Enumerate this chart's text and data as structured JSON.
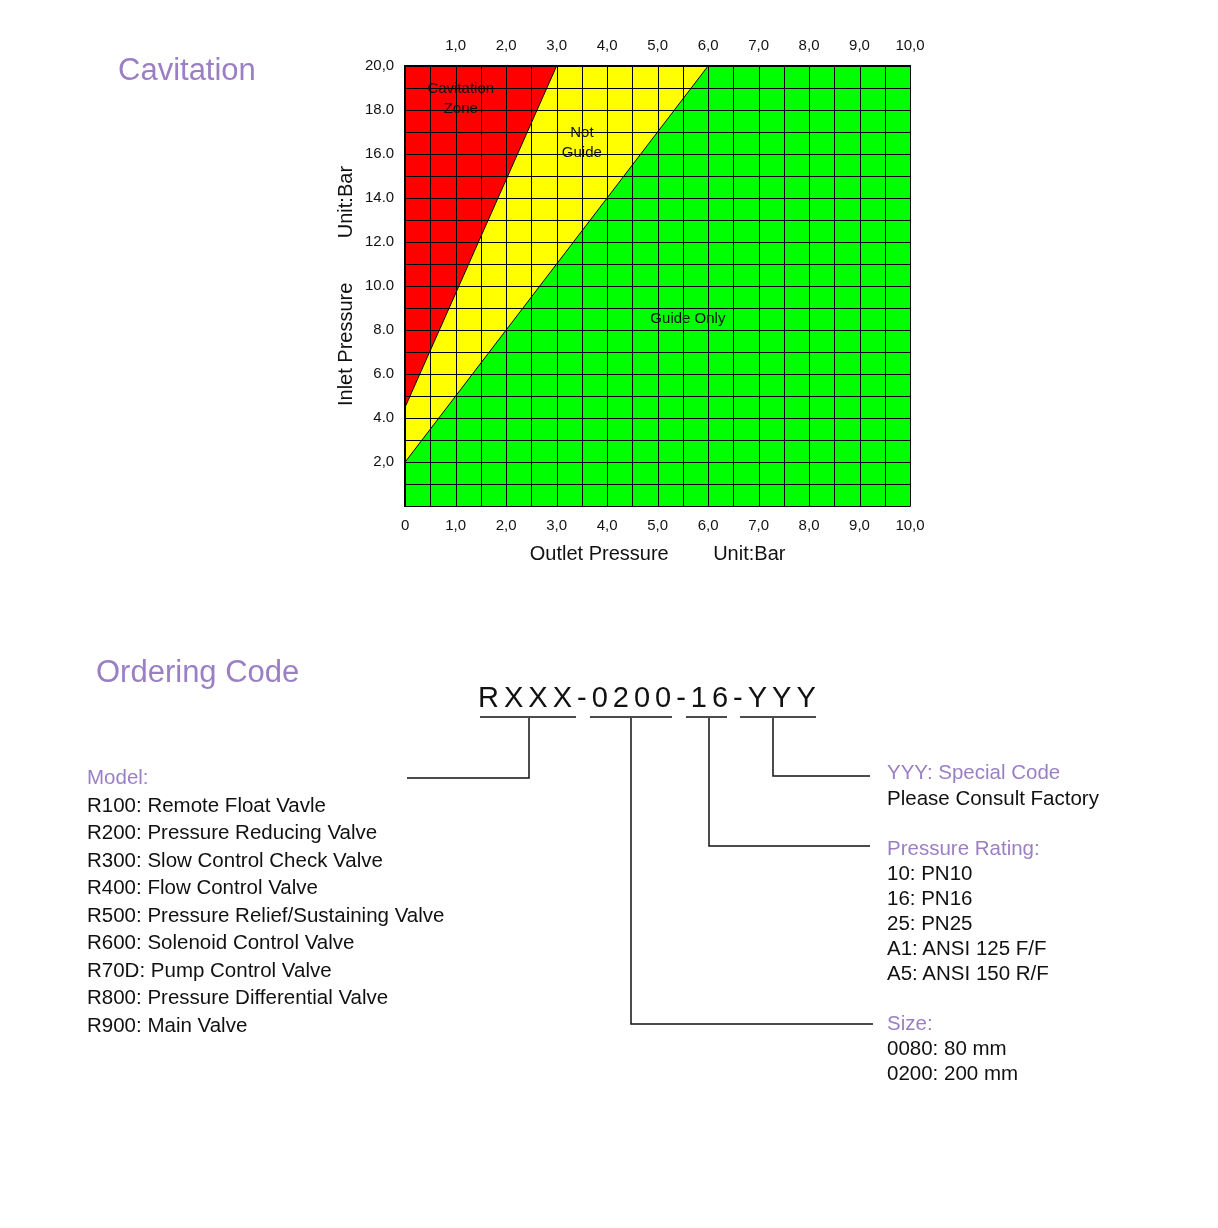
{
  "chart_data": {
    "type": "area",
    "title": "Cavitation",
    "xlabel": "Outlet Pressure        Unit:Bar",
    "ylabel": "Inlet Pressure        Unit:Bar",
    "x": [
      0,
      3,
      6,
      10
    ],
    "stacked": true,
    "series": [
      {
        "color": "#00ff00",
        "values": [
          2,
          11,
          20,
          20
        ]
      },
      {
        "color": "#ffff00",
        "values": [
          2.5,
          9,
          0,
          0
        ]
      },
      {
        "color": "#ff0000",
        "values": [
          15.5,
          0,
          0,
          0
        ]
      }
    ],
    "xlim": [
      0,
      10
    ],
    "ylim": [
      0,
      20
    ],
    "x2lim": [
      0,
      10
    ],
    "xticks": [
      {
        "value": 0,
        "label": "0"
      },
      {
        "value": 0.5,
        "label": null
      },
      {
        "value": 1,
        "label": "1,0"
      },
      {
        "value": 1.5,
        "label": null
      },
      {
        "value": 2,
        "label": "2,0"
      },
      {
        "value": 2.5,
        "label": null
      },
      {
        "value": 3,
        "label": "3,0"
      },
      {
        "value": 3.5,
        "label": null
      },
      {
        "value": 4,
        "label": "4,0"
      },
      {
        "value": 4.5,
        "label": null
      },
      {
        "value": 5,
        "label": "5,0"
      },
      {
        "value": 5.5,
        "label": null
      },
      {
        "value": 6,
        "label": "6,0"
      },
      {
        "value": 6.5,
        "label": null
      },
      {
        "value": 7,
        "label": "7,0"
      },
      {
        "value": 7.5,
        "label": null
      },
      {
        "value": 8,
        "label": "8,0"
      },
      {
        "value": 8.5,
        "label": null
      },
      {
        "value": 9,
        "label": "9,0"
      },
      {
        "value": 9.5,
        "label": null
      },
      {
        "value": 10,
        "label": "10,0"
      }
    ],
    "x2ticks": [
      {
        "value": 0,
        "label": null
      },
      {
        "value": 0.5,
        "label": null
      },
      {
        "value": 1,
        "label": "1,0"
      },
      {
        "value": 1.5,
        "label": null
      },
      {
        "value": 2,
        "label": "2,0"
      },
      {
        "value": 2.5,
        "label": null
      },
      {
        "value": 3,
        "label": "3,0"
      },
      {
        "value": 3.5,
        "label": null
      },
      {
        "value": 4,
        "label": "4,0"
      },
      {
        "value": 4.5,
        "label": null
      },
      {
        "value": 5,
        "label": "5,0"
      },
      {
        "value": 5.5,
        "label": null
      },
      {
        "value": 6,
        "label": "6,0"
      },
      {
        "value": 6.5,
        "label": null
      },
      {
        "value": 7,
        "label": "7,0"
      },
      {
        "value": 7.5,
        "label": null
      },
      {
        "value": 8,
        "label": "8,0"
      },
      {
        "value": 8.5,
        "label": null
      },
      {
        "value": 9,
        "label": "9,0"
      },
      {
        "value": 9.5,
        "label": null
      },
      {
        "value": 10,
        "label": "10,0"
      }
    ],
    "yticks": [
      {
        "value": 0,
        "label": null
      },
      {
        "value": 1,
        "label": null
      },
      {
        "value": 2,
        "label": "2,0"
      },
      {
        "value": 3,
        "label": null
      },
      {
        "value": 4,
        "label": "4.0"
      },
      {
        "value": 5,
        "label": null
      },
      {
        "value": 6,
        "label": "6.0"
      },
      {
        "value": 7,
        "label": null
      },
      {
        "value": 8,
        "label": "8.0"
      },
      {
        "value": 9,
        "label": null
      },
      {
        "value": 10,
        "label": "10.0"
      },
      {
        "value": 11,
        "label": null
      },
      {
        "value": 12,
        "label": "12.0"
      },
      {
        "value": 13,
        "label": null
      },
      {
        "value": 14,
        "label": "14.0"
      },
      {
        "value": 15,
        "label": null
      },
      {
        "value": 16,
        "label": "16.0"
      },
      {
        "value": 17,
        "label": null
      },
      {
        "value": 18,
        "label": "18.0"
      },
      {
        "value": 19,
        "label": null
      },
      {
        "value": 20,
        "label": "20,0"
      }
    ],
    "grid": true,
    "legend": false,
    "annotations": [
      "Cavitation\nZone",
      "Not\nGuide",
      "Guide Only",
      "Ordering Code",
      "RXXX-0200-16-YYY",
      "Model:\nR100: Remote Float Vavle\nR200: Pressure Reducing Valve\nR300: Slow Control Check Valve\nR400: Flow Control Valve\nR500: Pressure Relief/Sustaining Valve\nR600: Solenoid Control Valve\nR70D: Pump Control Valve\nR800: Pressure Differential Valve\nR900: Main Valve",
      "YYY: Special Code\nPlease Consult Factory",
      "Pressure Rating:\n10: PN10\n16: PN16\n25: PN25\nA1: ANSI 125 F/F\nA5: ANSI 150 R/F",
      "Size:\n0080: 80 mm\n0200: 200 mm"
    ]
  }
}
